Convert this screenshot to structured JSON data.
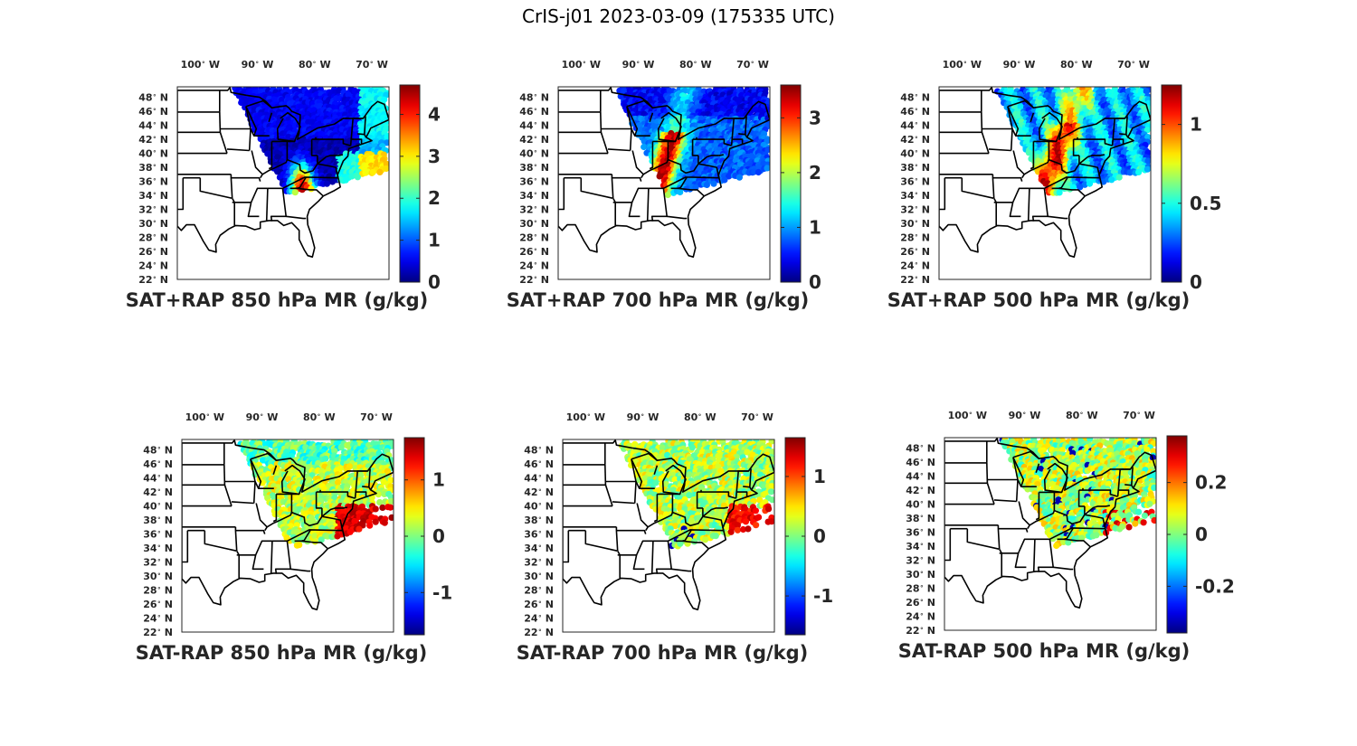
{
  "figure": {
    "title": "CrIS-j01 2023-03-09 (175335 UTC)"
  },
  "map": {
    "lon_ticks": [
      {
        "deg": "100",
        "hem": "W",
        "lon": -100
      },
      {
        "deg": "90",
        "hem": "W",
        "lon": -90
      },
      {
        "deg": "80",
        "hem": "W",
        "lon": -80
      },
      {
        "deg": "70",
        "hem": "W",
        "lon": -70
      }
    ],
    "lat_ticks": [
      {
        "deg": "48",
        "hem": "N",
        "lat": 48
      },
      {
        "deg": "46",
        "hem": "N",
        "lat": 46
      },
      {
        "deg": "44",
        "hem": "N",
        "lat": 44
      },
      {
        "deg": "42",
        "hem": "N",
        "lat": 42
      },
      {
        "deg": "40",
        "hem": "N",
        "lat": 40
      },
      {
        "deg": "38",
        "hem": "N",
        "lat": 38
      },
      {
        "deg": "36",
        "hem": "N",
        "lat": 36
      },
      {
        "deg": "34",
        "hem": "N",
        "lat": 34
      },
      {
        "deg": "32",
        "hem": "N",
        "lat": 32
      },
      {
        "deg": "30",
        "hem": "N",
        "lat": 30
      },
      {
        "deg": "28",
        "hem": "N",
        "lat": 28
      },
      {
        "deg": "26",
        "hem": "N",
        "lat": 26
      },
      {
        "deg": "24",
        "hem": "N",
        "lat": 24
      },
      {
        "deg": "22",
        "hem": "N",
        "lat": 22
      }
    ],
    "extent": {
      "lon_min": -104,
      "lon_max": -67,
      "lat_min": 22,
      "lat_max": 49.5
    },
    "colormap": "jet"
  },
  "panels": [
    {
      "title": "SAT+RAP 850 hPa MR (g/kg)",
      "colorbar": {
        "min": 0,
        "max": 4.7,
        "ticks": [
          {
            "v": 0,
            "label": "0"
          },
          {
            "v": 1,
            "label": "1"
          },
          {
            "v": 2,
            "label": "2"
          },
          {
            "v": 3,
            "label": "3"
          },
          {
            "v": 4,
            "label": "4"
          }
        ]
      }
    },
    {
      "title": "SAT+RAP 700 hPa MR (g/kg)",
      "colorbar": {
        "min": 0,
        "max": 3.6,
        "ticks": [
          {
            "v": 0,
            "label": "0"
          },
          {
            "v": 1,
            "label": "1"
          },
          {
            "v": 2,
            "label": "2"
          },
          {
            "v": 3,
            "label": "3"
          }
        ]
      }
    },
    {
      "title": "SAT+RAP 500 hPa MR (g/kg)",
      "colorbar": {
        "min": 0,
        "max": 1.25,
        "ticks": [
          {
            "v": 0,
            "label": "0"
          },
          {
            "v": 0.5,
            "label": "0.5"
          },
          {
            "v": 1,
            "label": "1"
          }
        ]
      }
    },
    {
      "title": "SAT-RAP 850 hPa MR (g/kg)",
      "colorbar": {
        "min": -1.75,
        "max": 1.75,
        "ticks": [
          {
            "v": -1,
            "label": "-1"
          },
          {
            "v": 0,
            "label": "0"
          },
          {
            "v": 1,
            "label": "1"
          }
        ]
      }
    },
    {
      "title": "SAT-RAP 700 hPa MR (g/kg)",
      "colorbar": {
        "min": -1.65,
        "max": 1.65,
        "ticks": [
          {
            "v": -1,
            "label": "-1"
          },
          {
            "v": 0,
            "label": "0"
          },
          {
            "v": 1,
            "label": "1"
          }
        ]
      }
    },
    {
      "title": "SAT-RAP 500 hPa MR (g/kg)",
      "colorbar": {
        "min": -0.38,
        "max": 0.38,
        "ticks": [
          {
            "v": -0.2,
            "label": "-0.2"
          },
          {
            "v": 0,
            "label": "0"
          },
          {
            "v": 0.2,
            "label": "0.2"
          }
        ]
      }
    }
  ]
}
